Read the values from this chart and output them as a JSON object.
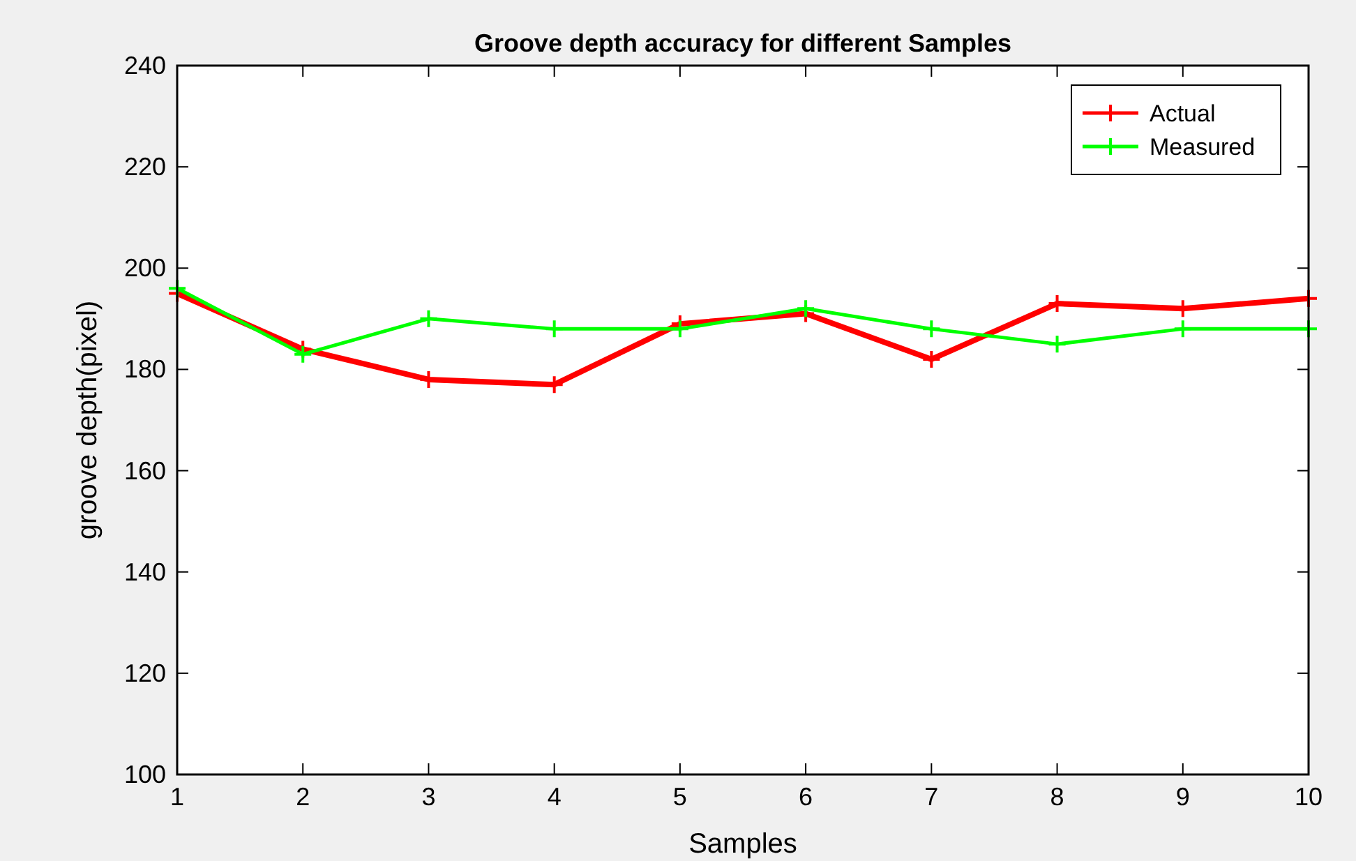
{
  "chart_data": {
    "type": "line",
    "title": "Groove depth accuracy for different Samples",
    "xlabel": "Samples",
    "ylabel": "groove depth(pixel)",
    "x": [
      1,
      2,
      3,
      4,
      5,
      6,
      7,
      8,
      9,
      10
    ],
    "series": [
      {
        "name": "Actual",
        "color": "#ff0000",
        "values": [
          195,
          184,
          178,
          177,
          189,
          191,
          182,
          193,
          192,
          194
        ]
      },
      {
        "name": "Measured",
        "color": "#00ff00",
        "values": [
          196,
          183,
          190,
          188,
          188,
          192,
          188,
          185,
          188,
          188
        ]
      }
    ],
    "xlim": [
      1,
      10
    ],
    "xticks": [
      1,
      2,
      3,
      4,
      5,
      6,
      7,
      8,
      9,
      10
    ],
    "ylim": [
      100,
      240
    ],
    "yticks": [
      100,
      120,
      140,
      160,
      180,
      200,
      220,
      240
    ],
    "grid": false,
    "legend": "top right",
    "marker": "cross",
    "line_style": "solid"
  }
}
